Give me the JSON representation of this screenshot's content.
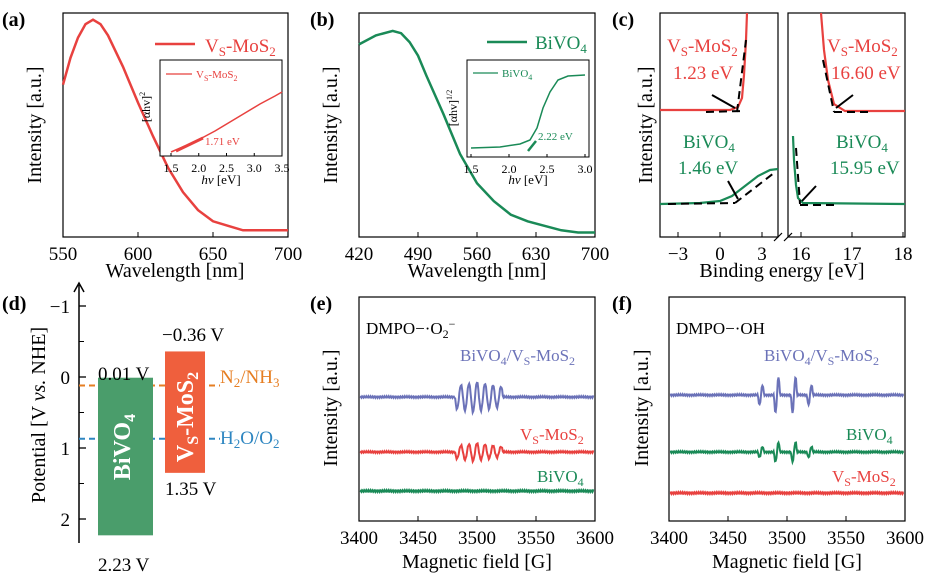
{
  "colors": {
    "red": "#e8413f",
    "green": "#1a8a57",
    "blue": "#6b72b8",
    "orange": "#e67e22",
    "skyblue": "#2e86c1",
    "black": "#000000"
  },
  "chart_data": [
    {
      "id": "a",
      "label": "(a)",
      "type": "line",
      "xlabel": "Wavelength [nm]",
      "ylabel": "Intensity [a.u.]",
      "xlim": [
        550,
        700
      ],
      "xticks": [
        "550",
        "600",
        "650",
        "700"
      ],
      "legend": "VS-MoS2",
      "series": [
        {
          "name": "VS-MoS2",
          "color": "red",
          "x": [
            550,
            555,
            560,
            565,
            570,
            575,
            580,
            590,
            600,
            610,
            620,
            630,
            640,
            650,
            660,
            670,
            680,
            690,
            700
          ],
          "y": [
            0.68,
            0.8,
            0.89,
            0.95,
            0.97,
            0.95,
            0.9,
            0.76,
            0.6,
            0.45,
            0.31,
            0.2,
            0.12,
            0.07,
            0.05,
            0.03,
            0.03,
            0.03,
            0.03
          ]
        }
      ],
      "inset": {
        "xlabel": "hv [eV]",
        "ylabel": "[αhv]²",
        "xlim": [
          1.5,
          3.5
        ],
        "xticks": [
          "1.5",
          "2.0",
          "2.5",
          "3.0",
          "3.5"
        ],
        "legend": "VS-MoS2",
        "annotation": "1.71 eV"
      }
    },
    {
      "id": "b",
      "label": "(b)",
      "type": "line",
      "xlabel": "Wavelength [nm]",
      "ylabel": "Intensity [a.u.]",
      "xlim": [
        420,
        700
      ],
      "xticks": [
        "420",
        "490",
        "560",
        "630",
        "700"
      ],
      "legend": "BiVO4",
      "series": [
        {
          "name": "BiVO4",
          "color": "green",
          "x": [
            420,
            440,
            460,
            470,
            480,
            490,
            500,
            520,
            540,
            560,
            580,
            600,
            620,
            640,
            660,
            680,
            700
          ],
          "y": [
            0.86,
            0.9,
            0.92,
            0.91,
            0.87,
            0.81,
            0.72,
            0.55,
            0.37,
            0.24,
            0.16,
            0.1,
            0.07,
            0.05,
            0.03,
            0.02,
            0.02
          ]
        }
      ],
      "inset": {
        "xlabel": "hv [eV]",
        "ylabel": "[αhv]^1/2",
        "xlim": [
          1.5,
          3.0
        ],
        "xticks": [
          "1.5",
          "2.0",
          "2.5",
          "3.0"
        ],
        "legend": "BiVO4",
        "annotation": "2.22 eV"
      }
    },
    {
      "id": "c",
      "label": "(c)",
      "type": "line",
      "xlabel": "Binding energy [eV]",
      "ylabel": "Intensity [a.u.]",
      "xticks_left": [
        "−3",
        "0",
        "3"
      ],
      "xticks_right": [
        "16",
        "17",
        "18"
      ],
      "annotations": [
        {
          "material": "VS-MoS2",
          "value": "1.23 eV"
        },
        {
          "material": "VS-MoS2",
          "value": "16.60 eV"
        },
        {
          "material": "BiVO4",
          "value": "1.46 eV"
        },
        {
          "material": "BiVO4",
          "value": "15.95 eV"
        }
      ]
    },
    {
      "id": "d",
      "label": "(d)",
      "type": "bar",
      "ylabel": "Potential [V vs. NHE]",
      "ylim": [
        2.5,
        -1.5
      ],
      "yticks": [
        "−1",
        "0",
        "1",
        "2"
      ],
      "bars": [
        {
          "name": "BiVO4",
          "top": 0.01,
          "bottom": 2.23,
          "top_label": "0.01 V",
          "bottom_label": "2.23 V",
          "color": "#4a9d6b"
        },
        {
          "name": "VS-MoS2",
          "top": -0.36,
          "bottom": 1.35,
          "top_label": "−0.36 V",
          "bottom_label": "1.35 V",
          "color": "#ef5f3d"
        }
      ],
      "reference_lines": [
        {
          "label": "N2/NH3",
          "value": 0.12,
          "color": "orange"
        },
        {
          "label": "H2O/O2",
          "value": 0.87,
          "color": "skyblue"
        }
      ]
    },
    {
      "id": "e",
      "label": "(e)",
      "type": "line",
      "xlabel": "Magnetic field [G]",
      "ylabel": "Intensity [a.u.]",
      "xlim": [
        3400,
        3600
      ],
      "xticks": [
        "3400",
        "3450",
        "3500",
        "3550",
        "3600"
      ],
      "title": "DMPO−·O2−",
      "series": [
        {
          "name": "BiVO4/VS-MoS2",
          "color": "blue"
        },
        {
          "name": "VS-MoS2",
          "color": "red"
        },
        {
          "name": "BiVO4",
          "color": "green"
        }
      ]
    },
    {
      "id": "f",
      "label": "(f)",
      "type": "line",
      "xlabel": "Magnetic field [G]",
      "ylabel": "Intensity [a.u.]",
      "xlim": [
        3400,
        3600
      ],
      "xticks": [
        "3400",
        "3450",
        "3500",
        "3550",
        "3600"
      ],
      "title": "DMPO−·OH",
      "series": [
        {
          "name": "BiVO4/VS-MoS2",
          "color": "blue"
        },
        {
          "name": "BiVO4",
          "color": "green"
        },
        {
          "name": "VS-MoS2",
          "color": "red"
        }
      ]
    }
  ]
}
